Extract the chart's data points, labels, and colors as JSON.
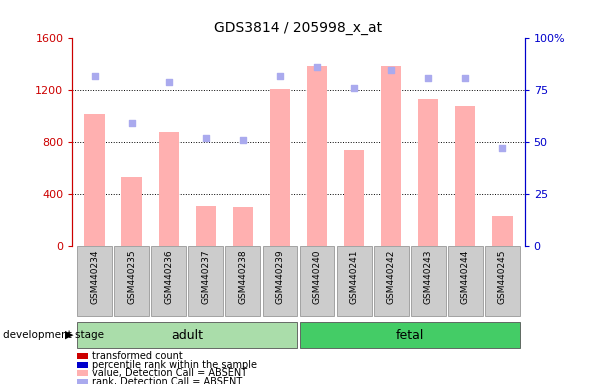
{
  "title": "GDS3814 / 205998_x_at",
  "samples": [
    "GSM440234",
    "GSM440235",
    "GSM440236",
    "GSM440237",
    "GSM440238",
    "GSM440239",
    "GSM440240",
    "GSM440241",
    "GSM440242",
    "GSM440243",
    "GSM440244",
    "GSM440245"
  ],
  "bar_values": [
    1020,
    530,
    880,
    310,
    300,
    1210,
    1390,
    740,
    1390,
    1130,
    1080,
    230
  ],
  "dot_values": [
    82,
    59,
    79,
    52,
    51,
    82,
    86,
    76,
    85,
    81,
    81,
    47
  ],
  "bar_color_absent": "#ffb0b0",
  "dot_color_absent": "#aaaaee",
  "ylim_left": [
    0,
    1600
  ],
  "ylim_right": [
    0,
    100
  ],
  "yticks_left": [
    0,
    400,
    800,
    1200,
    1600
  ],
  "ytick_labels_right": [
    "0",
    "25",
    "50",
    "75",
    "100%"
  ],
  "left_axis_color": "#cc0000",
  "right_axis_color": "#0000cc",
  "adult_bg": "#aaddaa",
  "fetal_bg": "#44cc66",
  "sample_bg": "#cccccc",
  "legend_items": [
    {
      "label": "transformed count",
      "color": "#cc0000"
    },
    {
      "label": "percentile rank within the sample",
      "color": "#0000cc"
    },
    {
      "label": "value, Detection Call = ABSENT",
      "color": "#ffb0b0"
    },
    {
      "label": "rank, Detection Call = ABSENT",
      "color": "#aaaaee"
    }
  ],
  "dev_stage_label": "development stage",
  "adult_label": "adult",
  "fetal_label": "fetal",
  "gridline_vals": [
    400,
    800,
    1200
  ],
  "n_adult": 6,
  "n_fetal": 6
}
